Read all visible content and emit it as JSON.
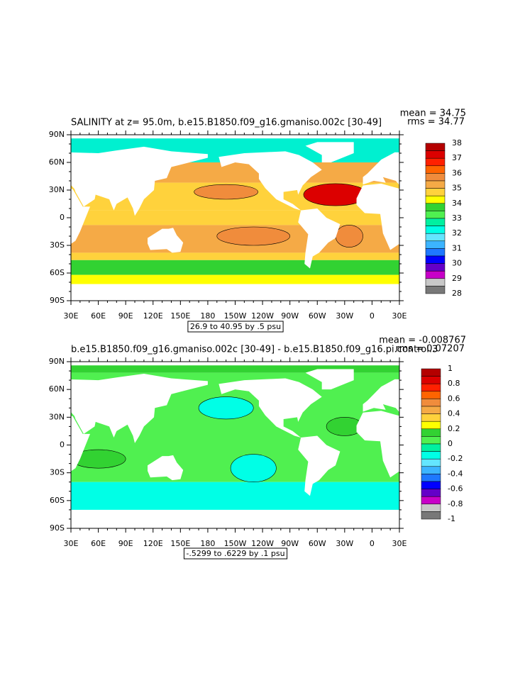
{
  "panels": [
    {
      "title": "SALINITY at z=  95.0m, b.e15.B1850.f09_g16.gmaniso.002c [30-49]",
      "mean": "mean = 34.75",
      "rms": "rms = 34.77",
      "contour_info": "26.9 to 40.95 by .5 psu",
      "colorbar": {
        "labels": [
          38,
          37,
          36,
          35,
          34,
          33,
          32,
          31,
          30,
          29,
          28
        ],
        "colors": [
          "#b40000",
          "#dc0000",
          "#ff2000",
          "#ff6400",
          "#f08c3c",
          "#f5aa46",
          "#ffd23c",
          "#ffff00",
          "#32d232",
          "#50f050",
          "#00f0a0",
          "#00ffe6",
          "#64e6ff",
          "#3cb4ff",
          "#1e78ff",
          "#0000ff",
          "#6400c8",
          "#c800c8",
          "#c8c8c8",
          "#787878"
        ]
      }
    },
    {
      "title": "b.e15.B1850.f09_g16.gmaniso.002c [30-49] - b.e15.B1850.f09_g16.pi.control.3",
      "mean": "mean = -0.008767",
      "rms": "rms = 0.07207",
      "contour_info": "-.5299 to .6229 by .1 psu",
      "colorbar": {
        "labels": [
          1,
          0.8,
          0.6,
          0.4,
          0.2,
          0,
          -0.2,
          -0.4,
          -0.6,
          -0.8,
          -1
        ],
        "colors": [
          "#b40000",
          "#dc0000",
          "#ff2000",
          "#ff6400",
          "#f08c3c",
          "#f5aa46",
          "#ffd23c",
          "#ffff00",
          "#32d232",
          "#50f050",
          "#00f0a0",
          "#00ffe6",
          "#64e6ff",
          "#3cb4ff",
          "#1e78ff",
          "#0000ff",
          "#6400c8",
          "#c800c8",
          "#c8c8c8",
          "#787878"
        ]
      }
    }
  ],
  "map_axes": {
    "lon_labels": [
      "30E",
      "60E",
      "90E",
      "120E",
      "150E",
      "180",
      "150W",
      "120W",
      "90W",
      "60W",
      "30W",
      "0",
      "30E"
    ],
    "lat_labels": [
      "90N",
      "60N",
      "30N",
      "0",
      "30S",
      "60S",
      "90S"
    ]
  }
}
